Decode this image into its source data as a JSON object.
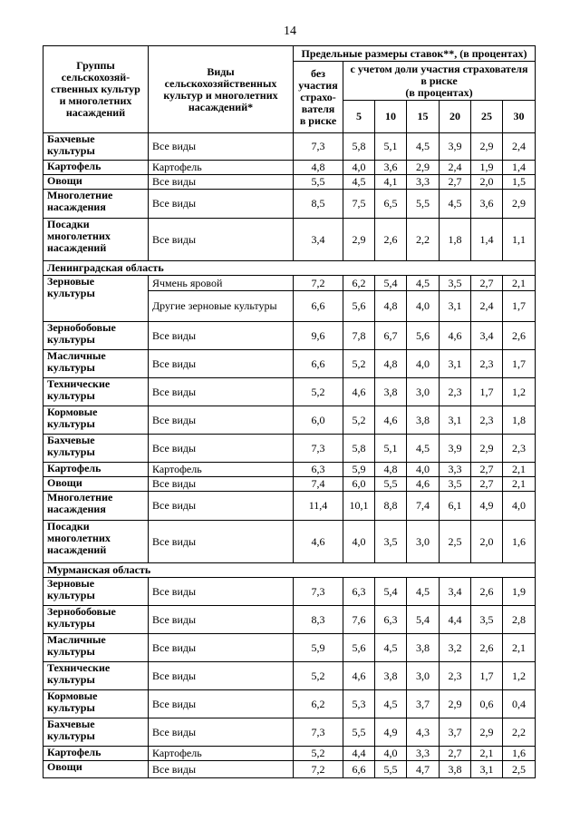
{
  "page_number": "14",
  "table": {
    "header": {
      "group": "Группы\nсельскохозяй-\nственных культур\nи многолетних\nнасаждений",
      "types": "Виды\nсельскохозяйственных\nкультур и многолетних\nнасаждений*",
      "limits": "Предельные размеры ставок**, (в процентах)",
      "without": "без\nучастия\nстрахо-\nвателя\nв риске",
      "with": "с учетом доли участия страхователя\nв риске\n(в процентах)",
      "shares": [
        "5",
        "10",
        "15",
        "20",
        "25",
        "30"
      ]
    },
    "rows": [
      {
        "group": "Бахчевые культуры",
        "type": "Все виды",
        "values": [
          "7,3",
          "5,8",
          "5,1",
          "4,5",
          "3,9",
          "2,9",
          "2,4"
        ]
      },
      {
        "group": "Картофель",
        "type": "Картофель",
        "values": [
          "4,8",
          "4,0",
          "3,6",
          "2,9",
          "2,4",
          "1,9",
          "1,4"
        ]
      },
      {
        "group": "Овощи",
        "type": "Все виды",
        "values": [
          "5,5",
          "4,5",
          "4,1",
          "3,3",
          "2,7",
          "2,0",
          "1,5"
        ]
      },
      {
        "group": "Многолетние насаждения",
        "type": "Все виды",
        "values": [
          "8,5",
          "7,5",
          "6,5",
          "5,5",
          "4,5",
          "3,6",
          "2,9"
        ]
      },
      {
        "group": "Посадки многолетних насаждений",
        "type": "Все виды",
        "values": [
          "3,4",
          "2,9",
          "2,6",
          "2,2",
          "1,8",
          "1,4",
          "1,1"
        ]
      },
      {
        "section": "Ленинградская область"
      },
      {
        "group": "Зерновые культуры",
        "type": "Ячмень яровой",
        "values": [
          "7,2",
          "6,2",
          "5,4",
          "4,5",
          "3,5",
          "2,7",
          "2,1"
        ]
      },
      {
        "type": "Другие зерновые культуры",
        "values": [
          "6,6",
          "5,6",
          "4,8",
          "4,0",
          "3,1",
          "2,4",
          "1,7"
        ]
      },
      {
        "group": "Зернобобовые культуры",
        "type": "Все виды",
        "values": [
          "9,6",
          "7,8",
          "6,7",
          "5,6",
          "4,6",
          "3,4",
          "2,6"
        ]
      },
      {
        "group": "Масличные культуры",
        "type": "Все виды",
        "values": [
          "6,6",
          "5,2",
          "4,8",
          "4,0",
          "3,1",
          "2,3",
          "1,7"
        ]
      },
      {
        "group": "Технические культуры",
        "type": "Все виды",
        "values": [
          "5,2",
          "4,6",
          "3,8",
          "3,0",
          "2,3",
          "1,7",
          "1,2"
        ]
      },
      {
        "group": "Кормовые культуры",
        "type": "Все виды",
        "values": [
          "6,0",
          "5,2",
          "4,6",
          "3,8",
          "3,1",
          "2,3",
          "1,8"
        ]
      },
      {
        "group": "Бахчевые культуры",
        "type": "Все виды",
        "values": [
          "7,3",
          "5,8",
          "5,1",
          "4,5",
          "3,9",
          "2,9",
          "2,3"
        ]
      },
      {
        "group": "Картофель",
        "type": "Картофель",
        "values": [
          "6,3",
          "5,9",
          "4,8",
          "4,0",
          "3,3",
          "2,7",
          "2,1"
        ]
      },
      {
        "group": "Овощи",
        "type": "Все виды",
        "values": [
          "7,4",
          "6,0",
          "5,5",
          "4,6",
          "3,5",
          "2,7",
          "2,1"
        ]
      },
      {
        "group": "Многолетние насаждения",
        "type": "Все виды",
        "values": [
          "11,4",
          "10,1",
          "8,8",
          "7,4",
          "6,1",
          "4,9",
          "4,0"
        ]
      },
      {
        "group": "Посадки многолетних насаждений",
        "type": "Все виды",
        "values": [
          "4,6",
          "4,0",
          "3,5",
          "3,0",
          "2,5",
          "2,0",
          "1,6"
        ]
      },
      {
        "section": "Мурманская область"
      },
      {
        "group": "Зерновые культуры",
        "type": "Все виды",
        "values": [
          "7,3",
          "6,3",
          "5,4",
          "4,5",
          "3,4",
          "2,6",
          "1,9"
        ]
      },
      {
        "group": "Зернобобовые культуры",
        "type": "Все виды",
        "values": [
          "8,3",
          "7,6",
          "6,3",
          "5,4",
          "4,4",
          "3,5",
          "2,8"
        ]
      },
      {
        "group": "Масличные культуры",
        "type": "Все виды",
        "values": [
          "5,9",
          "5,6",
          "4,5",
          "3,8",
          "3,2",
          "2,6",
          "2,1"
        ]
      },
      {
        "group": "Технические культуры",
        "type": "Все виды",
        "values": [
          "5,2",
          "4,6",
          "3,8",
          "3,0",
          "2,3",
          "1,7",
          "1,2"
        ]
      },
      {
        "group": "Кормовые культуры",
        "type": "Все виды",
        "values": [
          "6,2",
          "5,3",
          "4,5",
          "3,7",
          "2,9",
          "0,6",
          "0,4"
        ]
      },
      {
        "group": "Бахчевые культуры",
        "type": "Все виды",
        "values": [
          "7,3",
          "5,5",
          "4,9",
          "4,3",
          "3,7",
          "2,9",
          "2,2"
        ]
      },
      {
        "group": "Картофель",
        "type": "Картофель",
        "values": [
          "5,2",
          "4,4",
          "4,0",
          "3,3",
          "2,7",
          "2,1",
          "1,6"
        ]
      },
      {
        "group": "Овощи",
        "type": "Все виды",
        "values": [
          "7,2",
          "6,6",
          "5,5",
          "4,7",
          "3,8",
          "3,1",
          "2,5"
        ]
      }
    ]
  }
}
